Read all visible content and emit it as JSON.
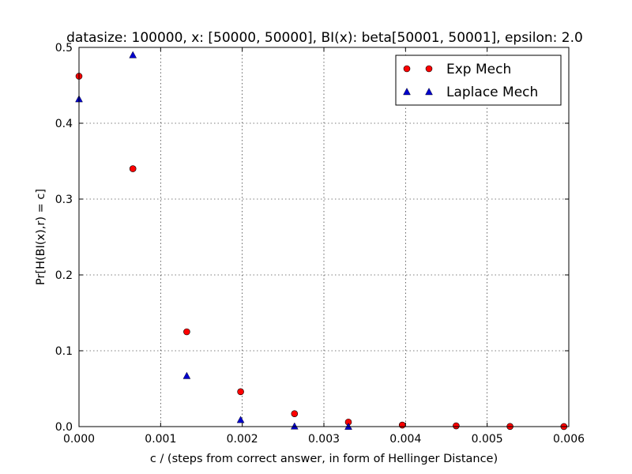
{
  "chart_data": {
    "type": "scatter",
    "title": "datasize: 100000, x: [50000, 50000], BI(x): beta[50001, 50001], epsilon: 2.0",
    "xlabel": "c / (steps from correct answer, in form of Hellinger Distance)",
    "ylabel": "Pr[H(BI(x),r) = c]",
    "xlim": [
      0,
      0.006
    ],
    "ylim": [
      0,
      0.5
    ],
    "xticks": [
      0.0,
      0.001,
      0.002,
      0.003,
      0.004,
      0.005,
      0.006
    ],
    "xtick_labels": [
      "0.000",
      "0.001",
      "0.002",
      "0.003",
      "0.004",
      "0.005",
      "0.006"
    ],
    "yticks": [
      0.0,
      0.1,
      0.2,
      0.3,
      0.4,
      0.5
    ],
    "ytick_labels": [
      "0.0",
      "0.1",
      "0.2",
      "0.3",
      "0.4",
      "0.5"
    ],
    "grid": true,
    "legend_position": "top-right",
    "series": [
      {
        "name": "Exp Mech",
        "marker": "circle",
        "color": "#ff0000",
        "points": [
          [
            0.0,
            0.462
          ],
          [
            0.00066,
            0.34
          ],
          [
            0.00132,
            0.125
          ],
          [
            0.00198,
            0.046
          ],
          [
            0.00264,
            0.017
          ],
          [
            0.0033,
            0.006
          ],
          [
            0.00396,
            0.002
          ],
          [
            0.00462,
            0.001
          ],
          [
            0.00528,
            0.0002
          ],
          [
            0.00594,
            0.0001
          ]
        ]
      },
      {
        "name": "Laplace Mech",
        "marker": "triangle",
        "color": "#0000cc",
        "points": [
          [
            0.0,
            0.432
          ],
          [
            0.00066,
            0.49
          ],
          [
            0.00132,
            0.067
          ],
          [
            0.00198,
            0.009
          ],
          [
            0.00264,
            0.0005
          ],
          [
            0.0033,
            0.0001
          ]
        ]
      }
    ]
  }
}
